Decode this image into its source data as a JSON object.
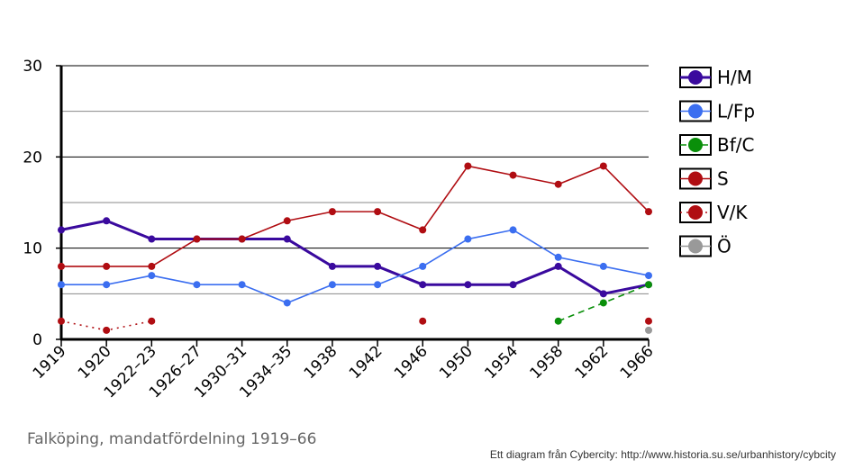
{
  "caption": "Falköping, mandatfördelning 1919–66",
  "credit": "Ett diagram från Cybercity: http://www.historia.su.se/urbanhistory/cybcity",
  "chart_data": {
    "type": "line",
    "title": "",
    "xlabel": "",
    "ylabel": "",
    "ylim": [
      0,
      30
    ],
    "yticks": [
      "0",
      "10",
      "20",
      "30"
    ],
    "grid": true,
    "legend": "right",
    "categories": [
      "1919",
      "1920",
      "1922–23",
      "1926–27",
      "1930–31",
      "1934–35",
      "1938",
      "1942",
      "1946",
      "1950",
      "1954",
      "1958",
      "1962",
      "1966"
    ],
    "series": [
      {
        "name": "H/M",
        "color": "#3a0a9e",
        "dash": "solid",
        "width": 3,
        "values": [
          12,
          13,
          11,
          11,
          11,
          11,
          8,
          8,
          6,
          6,
          6,
          8,
          5,
          6
        ]
      },
      {
        "name": "L/Fp",
        "color": "#3b6ef0",
        "dash": "solid",
        "width": 1.6,
        "values": [
          6,
          6,
          7,
          6,
          6,
          4,
          6,
          6,
          8,
          11,
          12,
          9,
          8,
          7
        ]
      },
      {
        "name": "Bf/C",
        "color": "#0a8f0a",
        "dash": "dashed",
        "width": 1.6,
        "values": [
          null,
          null,
          null,
          null,
          null,
          null,
          null,
          null,
          null,
          null,
          null,
          2,
          4,
          6
        ]
      },
      {
        "name": "S",
        "color": "#b00d12",
        "dash": "solid",
        "width": 1.6,
        "values": [
          8,
          8,
          8,
          11,
          11,
          13,
          14,
          14,
          12,
          19,
          18,
          17,
          19,
          14
        ]
      },
      {
        "name": "V/K",
        "color": "#b00d12",
        "dash": "dotted",
        "width": 1.6,
        "values": [
          2,
          1,
          2,
          null,
          null,
          null,
          null,
          null,
          2,
          null,
          null,
          null,
          null,
          2
        ]
      },
      {
        "name": "Ö",
        "color": "#999999",
        "dash": "solid",
        "width": 1.6,
        "values": [
          null,
          null,
          null,
          null,
          null,
          null,
          null,
          null,
          null,
          null,
          null,
          null,
          null,
          1
        ]
      }
    ]
  }
}
